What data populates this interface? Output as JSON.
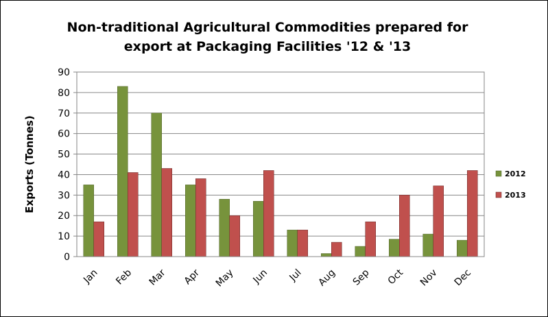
{
  "chart_data": {
    "type": "bar",
    "title_lines": [
      "Non-traditional Agricultural Commodities prepared for",
      "export at Packaging Facilities '12 & '13"
    ],
    "xlabel": "",
    "ylabel": "Exports (Tonnes)",
    "ylim": [
      0,
      90
    ],
    "yticks": [
      "0",
      "10",
      "20",
      "30",
      "40",
      "50",
      "60",
      "70",
      "80",
      "90"
    ],
    "grid": true,
    "legend_position": "right",
    "categories": [
      "Jan",
      "Feb",
      "Mar",
      "Apr",
      "May",
      "Jun",
      "Jul",
      "Aug",
      "Sep",
      "Oct",
      "Nov",
      "Dec"
    ],
    "series": [
      {
        "name": "2012",
        "color": "#77933c",
        "edge": "#4f6228",
        "values": [
          35,
          83,
          70,
          35,
          28,
          27,
          13,
          1.5,
          5,
          8.5,
          11,
          8
        ]
      },
      {
        "name": "2013",
        "color": "#c0504d",
        "edge": "#632523",
        "values": [
          17,
          41,
          43,
          38,
          20,
          42,
          13,
          7,
          17,
          30,
          34.5,
          42
        ]
      }
    ]
  }
}
